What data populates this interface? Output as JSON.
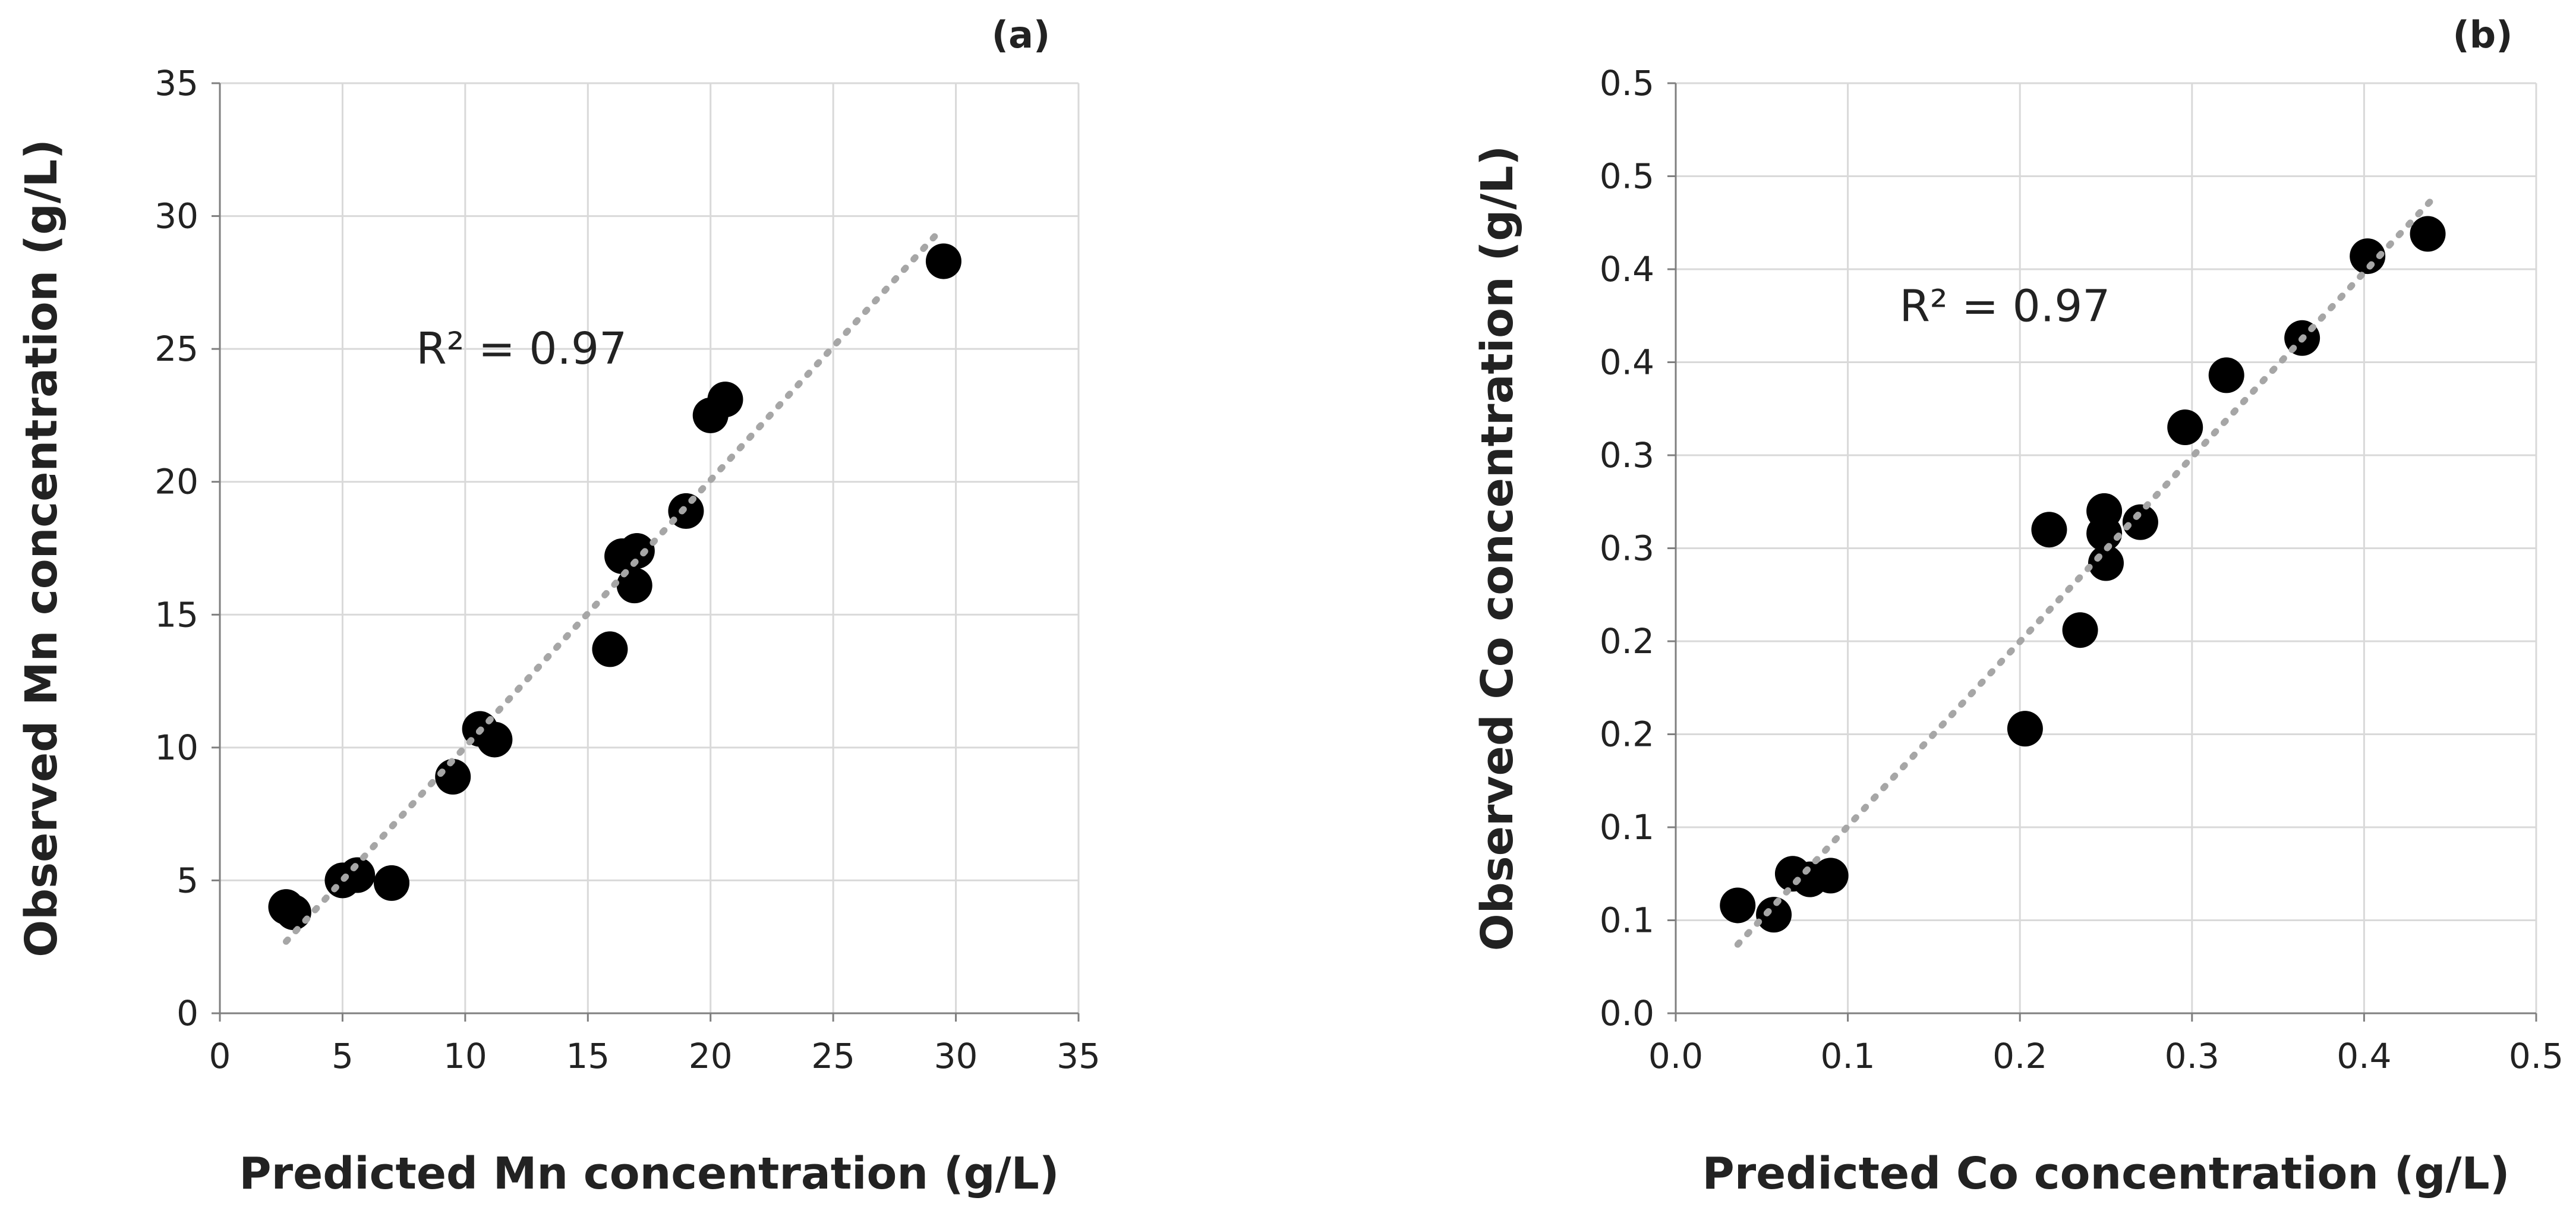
{
  "chart_data": [
    {
      "type": "scatter",
      "panel_label": "(a)",
      "xlabel": "Predicted Mn concentration (g/L)",
      "ylabel": "Observed Mn concentration (g/L)",
      "xlim": [
        0,
        35
      ],
      "ylim": [
        0,
        35
      ],
      "x_ticks": [
        "0",
        "5",
        "10",
        "15",
        "20",
        "25",
        "30",
        "35"
      ],
      "y_ticks": [
        "0",
        "5",
        "10",
        "15",
        "20",
        "25",
        "30",
        "35"
      ],
      "grid": true,
      "annotation": "R² = 0.97",
      "annotation_at": {
        "x": 8,
        "y": 25
      },
      "series": [
        {
          "name": "Mn",
          "points": [
            {
              "x": 2.7,
              "y": 4.0
            },
            {
              "x": 3.0,
              "y": 3.8
            },
            {
              "x": 5.0,
              "y": 5.0
            },
            {
              "x": 5.6,
              "y": 5.2
            },
            {
              "x": 7.0,
              "y": 4.9
            },
            {
              "x": 9.5,
              "y": 8.9
            },
            {
              "x": 10.6,
              "y": 10.7
            },
            {
              "x": 11.2,
              "y": 10.3
            },
            {
              "x": 15.9,
              "y": 13.7
            },
            {
              "x": 16.4,
              "y": 17.2
            },
            {
              "x": 16.9,
              "y": 16.1
            },
            {
              "x": 17.0,
              "y": 17.4
            },
            {
              "x": 19.0,
              "y": 18.9
            },
            {
              "x": 20.0,
              "y": 22.5
            },
            {
              "x": 20.6,
              "y": 23.1
            },
            {
              "x": 29.5,
              "y": 28.3
            }
          ]
        }
      ],
      "trendline": {
        "type": "linear",
        "x": [
          2.7,
          29.2
        ],
        "y": [
          2.7,
          29.3
        ]
      }
    },
    {
      "type": "scatter",
      "panel_label": "(b)",
      "xlabel": "Predicted Co concentration (g/L)",
      "ylabel": "Observed Co concentration (g/L)",
      "xlim": [
        0,
        0.5
      ],
      "ylim": [
        0,
        0.5
      ],
      "x_ticks": [
        "0.0",
        "0.1",
        "0.2",
        "0.3",
        "0.4",
        "0.5"
      ],
      "y_ticks": [
        "0.0",
        "0.1",
        "0.1",
        "0.2",
        "0.2",
        "0.3",
        "0.3",
        "0.4",
        "0.4",
        "0.5",
        "0.5"
      ],
      "grid": true,
      "annotation": "R² = 0.97",
      "annotation_at": {
        "x": 0.13,
        "y": 0.38
      },
      "series": [
        {
          "name": "Co",
          "points": [
            {
              "x": 0.036,
              "y": 0.058
            },
            {
              "x": 0.057,
              "y": 0.053
            },
            {
              "x": 0.068,
              "y": 0.075
            },
            {
              "x": 0.078,
              "y": 0.072
            },
            {
              "x": 0.09,
              "y": 0.074
            },
            {
              "x": 0.203,
              "y": 0.153
            },
            {
              "x": 0.217,
              "y": 0.26
            },
            {
              "x": 0.235,
              "y": 0.206
            },
            {
              "x": 0.249,
              "y": 0.27
            },
            {
              "x": 0.249,
              "y": 0.258
            },
            {
              "x": 0.25,
              "y": 0.242
            },
            {
              "x": 0.27,
              "y": 0.264
            },
            {
              "x": 0.296,
              "y": 0.315
            },
            {
              "x": 0.32,
              "y": 0.343
            },
            {
              "x": 0.364,
              "y": 0.363
            },
            {
              "x": 0.402,
              "y": 0.407
            },
            {
              "x": 0.437,
              "y": 0.419
            }
          ]
        }
      ],
      "trendline": {
        "type": "linear",
        "x": [
          0.036,
          0.44
        ],
        "y": [
          0.037,
          0.438
        ]
      }
    }
  ]
}
